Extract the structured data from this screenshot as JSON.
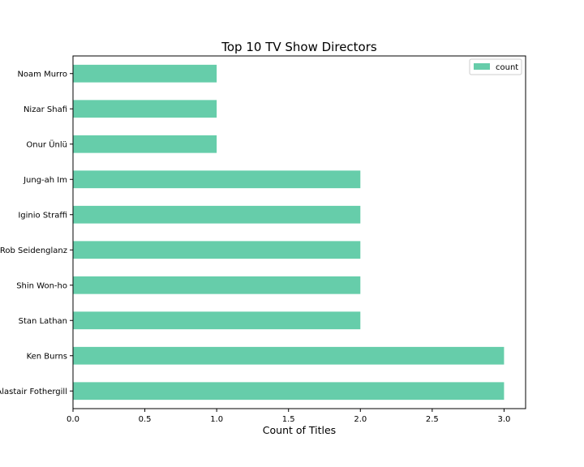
{
  "chart_data": {
    "type": "bar",
    "orientation": "horizontal",
    "title": "Top 10 TV Show Directors",
    "xlabel": "Count of Titles",
    "ylabel": "",
    "xlim": [
      0,
      3.15
    ],
    "xticks": [
      "0.0",
      "0.5",
      "1.0",
      "1.5",
      "2.0",
      "2.5",
      "3.0"
    ],
    "categories": [
      "Noam Murro",
      "Nizar Shafi",
      "Onur Ünlü",
      "Jung-ah Im",
      "Iginio Straffi",
      "Rob Seidenglanz",
      "Shin Won-ho",
      "Stan Lathan",
      "Ken Burns",
      "Alastair Fothergill"
    ],
    "series": [
      {
        "name": "count",
        "values": [
          1,
          1,
          1,
          2,
          2,
          2,
          2,
          2,
          3,
          3
        ],
        "color": "#66cdaa"
      }
    ],
    "legend": "top-right",
    "grid": false
  }
}
